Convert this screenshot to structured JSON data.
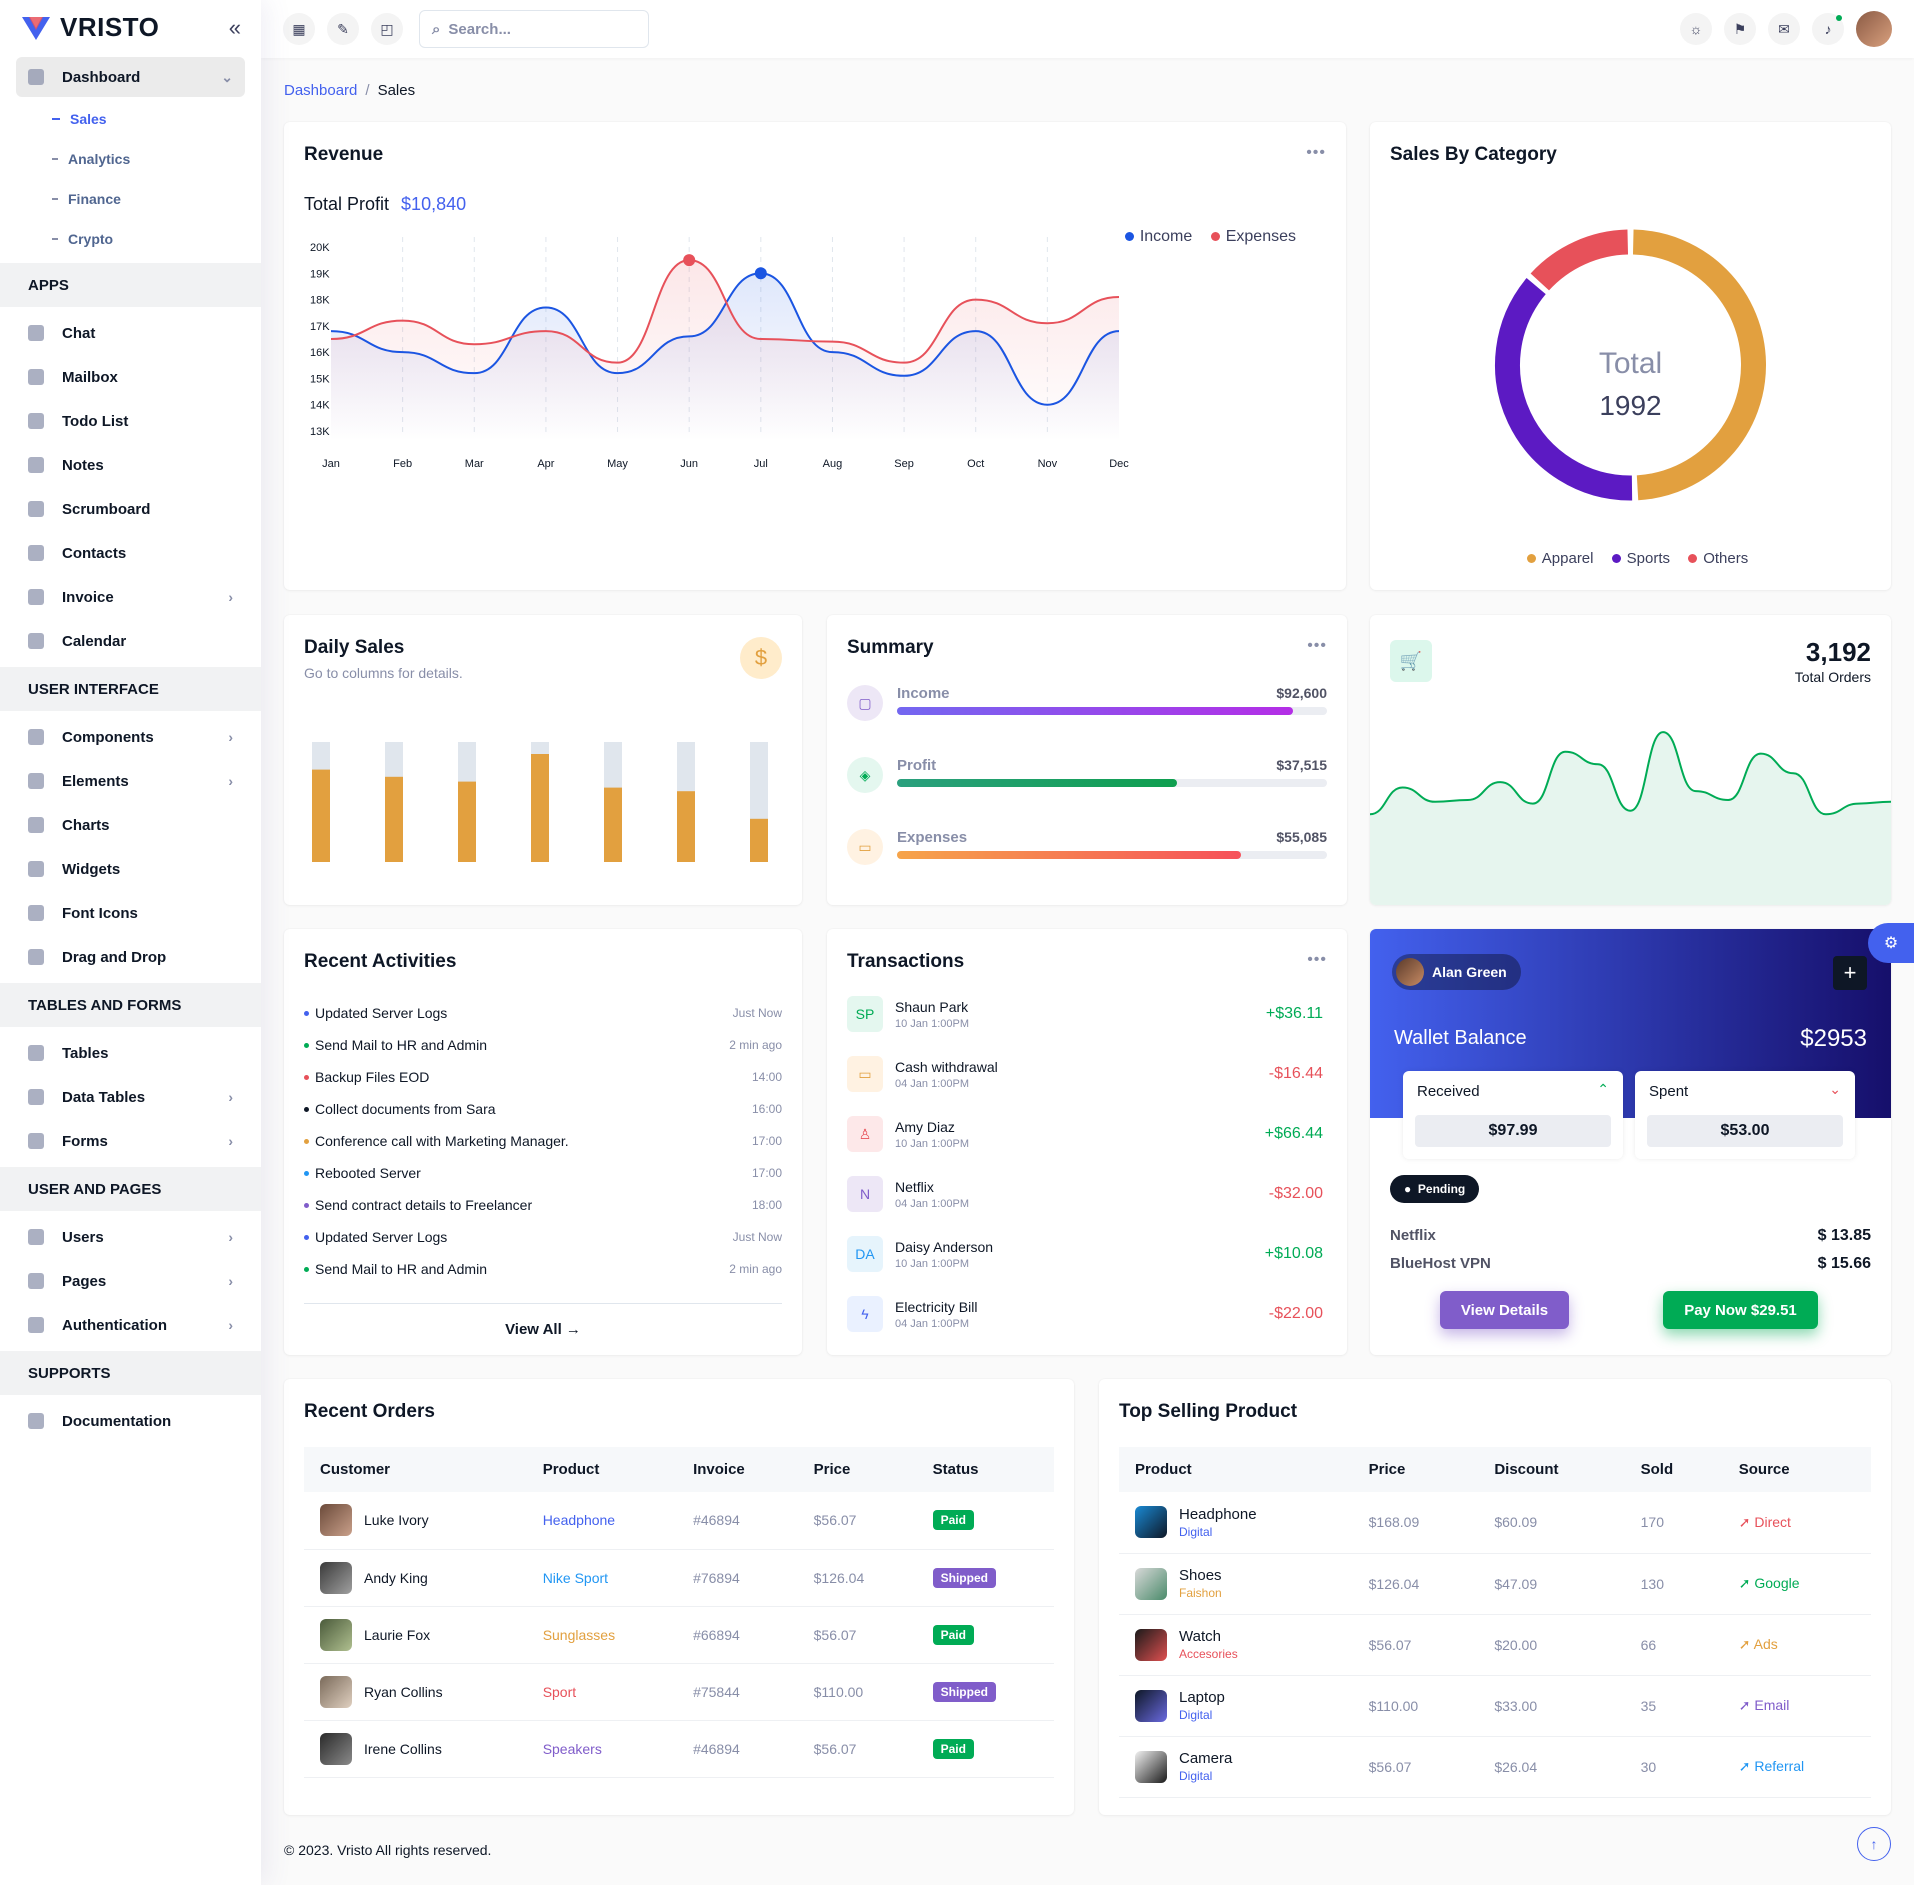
{
  "brand": "VRISTO",
  "sidebar": {
    "dashboard": "Dashboard",
    "sub": [
      "Sales",
      "Analytics",
      "Finance",
      "Crypto"
    ],
    "sections": [
      {
        "title": "APPS",
        "items": [
          {
            "label": "Chat"
          },
          {
            "label": "Mailbox"
          },
          {
            "label": "Todo List"
          },
          {
            "label": "Notes"
          },
          {
            "label": "Scrumboard"
          },
          {
            "label": "Contacts"
          },
          {
            "label": "Invoice",
            "chev": true
          },
          {
            "label": "Calendar"
          }
        ]
      },
      {
        "title": "USER INTERFACE",
        "items": [
          {
            "label": "Components",
            "chev": true
          },
          {
            "label": "Elements",
            "chev": true
          },
          {
            "label": "Charts"
          },
          {
            "label": "Widgets"
          },
          {
            "label": "Font Icons"
          },
          {
            "label": "Drag and Drop"
          }
        ]
      },
      {
        "title": "TABLES AND FORMS",
        "items": [
          {
            "label": "Tables"
          },
          {
            "label": "Data Tables",
            "chev": true
          },
          {
            "label": "Forms",
            "chev": true
          }
        ]
      },
      {
        "title": "USER AND PAGES",
        "items": [
          {
            "label": "Users",
            "chev": true
          },
          {
            "label": "Pages",
            "chev": true
          },
          {
            "label": "Authentication",
            "chev": true
          }
        ]
      },
      {
        "title": "SUPPORTS",
        "items": [
          {
            "label": "Documentation"
          }
        ]
      }
    ]
  },
  "topbar": {
    "search_placeholder": "Search..."
  },
  "breadcrumb": {
    "parent": "Dashboard",
    "current": "Sales"
  },
  "revenue": {
    "title": "Revenue",
    "profit_label": "Total Profit",
    "profit_value": "$10,840",
    "legend": [
      "Income",
      "Expenses"
    ],
    "chart_data": {
      "type": "area",
      "categories": [
        "Jan",
        "Feb",
        "Mar",
        "Apr",
        "May",
        "Jun",
        "Jul",
        "Aug",
        "Sep",
        "Oct",
        "Nov",
        "Dec"
      ],
      "yticks": [
        "20K",
        "19K",
        "18K",
        "17K",
        "16K",
        "15K",
        "14K",
        "13K"
      ],
      "ylim": [
        13000,
        20000
      ],
      "series": [
        {
          "name": "Income",
          "color": "#1b55e2",
          "values": [
            16800,
            16000,
            15200,
            17700,
            15200,
            16600,
            19000,
            16000,
            15100,
            16800,
            14000,
            16800
          ]
        },
        {
          "name": "Expenses",
          "color": "#e7515a",
          "values": [
            16500,
            17200,
            16300,
            16800,
            15600,
            19500,
            16500,
            16400,
            15600,
            18000,
            17100,
            18100
          ]
        }
      ]
    }
  },
  "category": {
    "title": "Sales By Category",
    "total_label": "Total",
    "total_value": "1992",
    "legend": [
      "Apparel",
      "Sports",
      "Others"
    ],
    "chart_data": {
      "type": "pie",
      "labels": [
        "Apparel",
        "Sports",
        "Others"
      ],
      "values": [
        985,
        737,
        270
      ],
      "colors": [
        "#e2a03f",
        "#5c1ac3",
        "#e7515a"
      ]
    }
  },
  "daily": {
    "title": "Daily Sales",
    "subtitle": "Go to columns for details.",
    "chart_data": {
      "type": "bar",
      "values": [
        77,
        71,
        67,
        90,
        62,
        59,
        36
      ],
      "max": 100,
      "color": "#e2a03f",
      "track": "#e0e6ed"
    }
  },
  "summary": {
    "title": "Summary",
    "rows": [
      {
        "label": "Income",
        "value": "$92,600",
        "pct": 92,
        "grad": "linear-gradient(90deg,#7367f0,#b42ee6)",
        "icbg": "#ede7f6",
        "ic": "#805dca"
      },
      {
        "label": "Profit",
        "value": "$37,515",
        "pct": 65,
        "grad": "linear-gradient(90deg,#2ba07e,#0f9f4f)",
        "icbg": "#e4f7ef",
        "ic": "#00ab55"
      },
      {
        "label": "Expenses",
        "value": "$55,085",
        "pct": 80,
        "grad": "linear-gradient(90deg,#f6a44a,#f6515a)",
        "icbg": "#fff2e2",
        "ic": "#e2a03f"
      }
    ]
  },
  "orders_total": {
    "value": "3,192",
    "label": "Total Orders",
    "chart_data": {
      "type": "area",
      "values": [
        20,
        35,
        27,
        28,
        38,
        26,
        55,
        48,
        22,
        66,
        33,
        28,
        54,
        43,
        20,
        26,
        27
      ]
    }
  },
  "activities": {
    "title": "Recent Activities",
    "items": [
      {
        "text": "Updated Server Logs",
        "time": "Just Now",
        "color": "#4361ee"
      },
      {
        "text": "Send Mail to HR and Admin",
        "time": "2 min ago",
        "color": "#00ab55"
      },
      {
        "text": "Backup Files EOD",
        "time": "14:00",
        "color": "#e7515a"
      },
      {
        "text": "Collect documents from Sara",
        "time": "16:00",
        "color": "#0e1726"
      },
      {
        "text": "Conference call with Marketing Manager.",
        "time": "17:00",
        "color": "#e2a03f"
      },
      {
        "text": "Rebooted Server",
        "time": "17:00",
        "color": "#2196f3"
      },
      {
        "text": "Send contract details to Freelancer",
        "time": "18:00",
        "color": "#805dca"
      },
      {
        "text": "Updated Server Logs",
        "time": "Just Now",
        "color": "#4361ee"
      },
      {
        "text": "Send Mail to HR and Admin",
        "time": "2 min ago",
        "color": "#00ab55"
      }
    ],
    "view_all": "View All"
  },
  "transactions": {
    "title": "Transactions",
    "items": [
      {
        "icon": "SP",
        "name": "Shaun Park",
        "date": "10 Jan 1:00PM",
        "amount": "+$36.11",
        "pos": true,
        "bg": "#e4f7ef",
        "fg": "#00ab55"
      },
      {
        "icon": "▭",
        "name": "Cash withdrawal",
        "date": "04 Jan 1:00PM",
        "amount": "-$16.44",
        "pos": false,
        "bg": "#fff2e2",
        "fg": "#e2a03f"
      },
      {
        "icon": "♙",
        "name": "Amy Diaz",
        "date": "10 Jan 1:00PM",
        "amount": "+$66.44",
        "pos": true,
        "bg": "#fde8e9",
        "fg": "#e7515a"
      },
      {
        "icon": "N",
        "name": "Netflix",
        "date": "04 Jan 1:00PM",
        "amount": "-$32.00",
        "pos": false,
        "bg": "#ede7f6",
        "fg": "#805dca"
      },
      {
        "icon": "DA",
        "name": "Daisy Anderson",
        "date": "10 Jan 1:00PM",
        "amount": "+$10.08",
        "pos": true,
        "bg": "#e6f4fc",
        "fg": "#2196f3"
      },
      {
        "icon": "ϟ",
        "name": "Electricity Bill",
        "date": "04 Jan 1:00PM",
        "amount": "-$22.00",
        "pos": false,
        "bg": "#eaf1ff",
        "fg": "#4361ee"
      }
    ]
  },
  "wallet": {
    "user": "Alan Green",
    "title": "Wallet Balance",
    "balance": "$2953",
    "received_label": "Received",
    "received_value": "$97.99",
    "spent_label": "Spent",
    "spent_value": "$53.00",
    "status": "Pending",
    "bills": [
      {
        "name": "Netflix",
        "amount": "$ 13.85"
      },
      {
        "name": "BlueHost VPN",
        "amount": "$ 15.66"
      }
    ],
    "view_btn": "View Details",
    "pay_btn": "Pay Now $29.51"
  },
  "recent_orders": {
    "title": "Recent Orders",
    "headers": [
      "Customer",
      "Product",
      "Invoice",
      "Price",
      "Status"
    ],
    "rows": [
      {
        "customer": "Luke Ivory",
        "product": "Headphone",
        "pcolor": "#4361ee",
        "invoice": "#46894",
        "price": "$56.07",
        "status": "Paid",
        "scolor": "#00ab55"
      },
      {
        "customer": "Andy King",
        "product": "Nike Sport",
        "pcolor": "#2196f3",
        "invoice": "#76894",
        "price": "$126.04",
        "status": "Shipped",
        "scolor": "#805dca"
      },
      {
        "customer": "Laurie Fox",
        "product": "Sunglasses",
        "pcolor": "#e2a03f",
        "invoice": "#66894",
        "price": "$56.07",
        "status": "Paid",
        "scolor": "#00ab55"
      },
      {
        "customer": "Ryan Collins",
        "product": "Sport",
        "pcolor": "#e7515a",
        "invoice": "#75844",
        "price": "$110.00",
        "status": "Shipped",
        "scolor": "#805dca"
      },
      {
        "customer": "Irene Collins",
        "product": "Speakers",
        "pcolor": "#805dca",
        "invoice": "#46894",
        "price": "$56.07",
        "status": "Paid",
        "scolor": "#00ab55"
      }
    ]
  },
  "top_selling": {
    "title": "Top Selling Product",
    "headers": [
      "Product",
      "Price",
      "Discount",
      "Sold",
      "Source"
    ],
    "rows": [
      {
        "name": "Headphone",
        "cat": "Digital",
        "ccolor": "#4361ee",
        "price": "$168.09",
        "discount": "$60.09",
        "sold": "170",
        "source": "Direct",
        "scolor": "#e7515a"
      },
      {
        "name": "Shoes",
        "cat": "Faishon",
        "ccolor": "#e2a03f",
        "price": "$126.04",
        "discount": "$47.09",
        "sold": "130",
        "source": "Google",
        "scolor": "#00ab55"
      },
      {
        "name": "Watch",
        "cat": "Accesories",
        "ccolor": "#e7515a",
        "price": "$56.07",
        "discount": "$20.00",
        "sold": "66",
        "source": "Ads",
        "scolor": "#e2a03f"
      },
      {
        "name": "Laptop",
        "cat": "Digital",
        "ccolor": "#4361ee",
        "price": "$110.00",
        "discount": "$33.00",
        "sold": "35",
        "source": "Email",
        "scolor": "#805dca"
      },
      {
        "name": "Camera",
        "cat": "Digital",
        "ccolor": "#4361ee",
        "price": "$56.07",
        "discount": "$26.04",
        "sold": "30",
        "source": "Referral",
        "scolor": "#2196f3"
      }
    ]
  },
  "footer": "© 2023. Vristo All rights reserved."
}
